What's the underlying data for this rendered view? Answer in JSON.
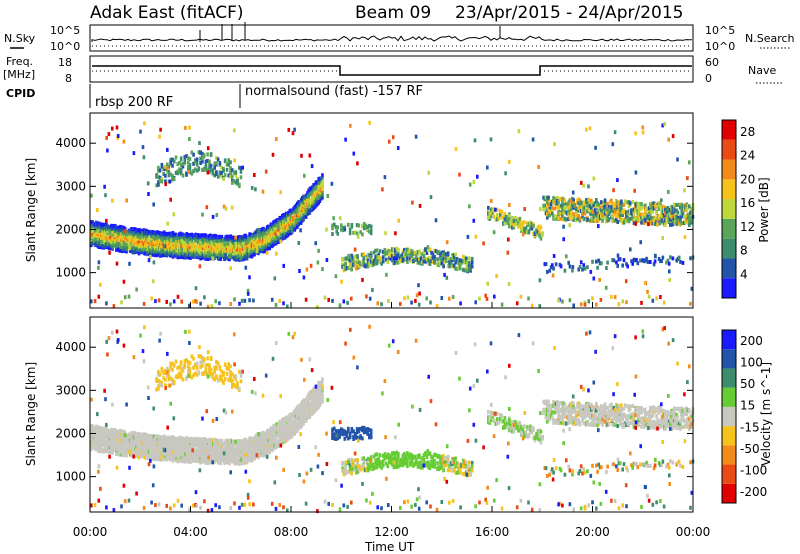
{
  "header": {
    "station": "Adak East (fitACF)",
    "beam": "Beam 09",
    "date_range": "23/Apr/2015 - 24/Apr/2015"
  },
  "noise_panel": {
    "left_label": "N.Sky",
    "right_label": "N.Search",
    "left_ticks": [
      "10^5",
      "10^0"
    ],
    "right_ticks": [
      "10^5",
      "10^0"
    ]
  },
  "freq_panel": {
    "left_label_1": "Freq.",
    "left_label_2": "[MHz]",
    "right_label": "Nave",
    "left_ticks": [
      "18",
      "8"
    ],
    "right_ticks": [
      "60",
      "0"
    ]
  },
  "cpid_panel": {
    "label": "CPID",
    "modes": [
      {
        "name": "rbsp 200 RF",
        "start_hour": 0
      },
      {
        "name": "normalsound (fast) -157 RF",
        "start_hour": 6
      }
    ]
  },
  "colors": {
    "power_scale": [
      "#1a1aff",
      "#2255aa",
      "#3d8c6e",
      "#5aa55a",
      "#bcd83a",
      "#f6c21c",
      "#f28b1a",
      "#ea4a14",
      "#e00000"
    ],
    "velocity_scale": [
      "#1a1aff",
      "#2255aa",
      "#3d8c6e",
      "#66cc33",
      "#c8c8c0",
      "#f6c21c",
      "#f28b1a",
      "#ea4a14",
      "#e00000"
    ],
    "ground_scatter": "#c8c8c0"
  },
  "chart_data": [
    {
      "type": "heatmap",
      "title": "",
      "quantity": "Power",
      "xlabel": "Time UT",
      "ylabel": "Slant Range [km]",
      "x_ticks": [
        "00:00",
        "04:00",
        "08:00",
        "12:00",
        "16:00",
        "20:00",
        "00:00"
      ],
      "xlim_hours": [
        0,
        24
      ],
      "y_ticks": [
        1000,
        2000,
        3000,
        4000
      ],
      "ylim_km": [
        180,
        4700
      ],
      "colorbar_label": "Power [dB]",
      "colorbar_ticks": [
        4,
        8,
        12,
        16,
        20,
        24,
        28
      ],
      "colorbar_range": [
        0,
        30
      ],
      "regions": [
        {
          "name": "main echo band",
          "t_start": 0.0,
          "t_end": 9.2,
          "range_km_mid": [
            1900,
            1700,
            1550,
            1800,
            2500,
            3000
          ],
          "power_db_peak": 26
        },
        {
          "name": "upper patch",
          "t_start": 2.5,
          "t_end": 6.2,
          "range_km_mid": [
            3300,
            3500,
            3400,
            3100
          ],
          "power_db_peak": 14
        },
        {
          "name": "mid-day low echoes",
          "t_start": 10.0,
          "t_end": 15.2,
          "range_km_mid": [
            1100,
            1300,
            1400,
            1100
          ],
          "power_db_peak": 18
        },
        {
          "name": "late echoes 1",
          "t_start": 15.8,
          "t_end": 18.0,
          "range_km_mid": [
            2400,
            2100,
            1900
          ],
          "power_db_peak": 20
        },
        {
          "name": "late echoes 2",
          "t_start": 18.0,
          "t_end": 24.0,
          "range_km_mid": [
            2600,
            2500,
            2400,
            2200
          ],
          "power_db_peak": 22
        }
      ]
    },
    {
      "type": "heatmap",
      "title": "",
      "quantity": "Velocity",
      "xlabel": "Time UT",
      "ylabel": "Slant Range [km]",
      "x_ticks": [
        "00:00",
        "04:00",
        "08:00",
        "12:00",
        "16:00",
        "20:00",
        "00:00"
      ],
      "xlim_hours": [
        0,
        24
      ],
      "y_ticks": [
        1000,
        2000,
        3000,
        4000
      ],
      "ylim_km": [
        180,
        4700
      ],
      "colorbar_label": "Velocity [m s^-1]",
      "colorbar_ticks": [
        200,
        100,
        50,
        15,
        -15,
        -50,
        -100,
        -200
      ],
      "colorbar_range": [
        -250,
        250
      ],
      "regions": [
        {
          "name": "ground scatter band",
          "t_start": 0.0,
          "t_end": 9.2,
          "velocity": 0,
          "ground_scatter": true
        },
        {
          "name": "upper patch",
          "t_start": 3.0,
          "t_end": 6.0,
          "velocity": -40
        },
        {
          "name": "blue patch",
          "t_start": 9.5,
          "t_end": 11.2,
          "velocity": 150
        },
        {
          "name": "green patch",
          "t_start": 11.0,
          "t_end": 14.0,
          "velocity": 40
        },
        {
          "name": "late ground scatter",
          "t_start": 18.0,
          "t_end": 24.0,
          "velocity": 0,
          "ground_scatter": true
        }
      ]
    }
  ]
}
